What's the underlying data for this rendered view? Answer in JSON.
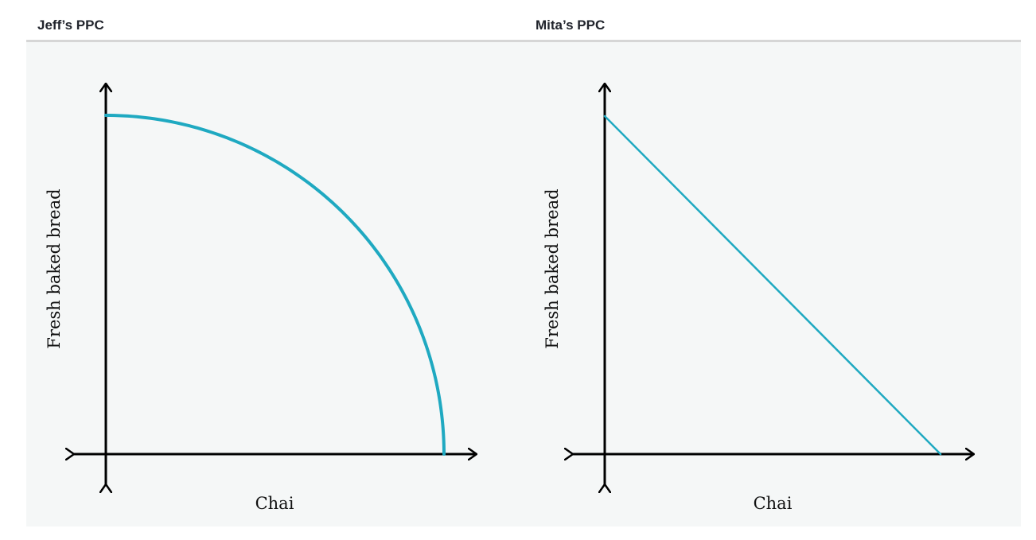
{
  "header": {
    "left_title": "Jeff’s PPC",
    "right_title": "Mita’s PPC"
  },
  "colors": {
    "curve": "#1fa9c1",
    "axis": "#000000",
    "plot_background": "#f5f7f7",
    "divider": "#d6d6d6"
  },
  "chart_data": [
    {
      "type": "line",
      "title": "Jeff’s PPC",
      "xlabel": "Chai",
      "ylabel": "Fresh baked bread",
      "shape": "concave (bowed outward) quarter-ellipse",
      "series": [
        {
          "x": [
            0,
            0.1,
            0.2,
            0.3,
            0.4,
            0.5,
            0.6,
            0.7,
            0.8,
            0.9,
            0.95,
            1.0
          ],
          "y": [
            1.0,
            0.995,
            0.98,
            0.954,
            0.917,
            0.866,
            0.8,
            0.714,
            0.6,
            0.436,
            0.312,
            0
          ]
        }
      ],
      "xlim": [
        0,
        1.1
      ],
      "ylim": [
        0,
        1.1
      ],
      "grid": false
    },
    {
      "type": "line",
      "title": "Mita’s PPC",
      "xlabel": "Chai",
      "ylabel": "Fresh baked bread",
      "shape": "straight line",
      "series": [
        {
          "x": [
            0,
            1.0
          ],
          "y": [
            1.0,
            0
          ]
        }
      ],
      "xlim": [
        0,
        1.1
      ],
      "ylim": [
        0,
        1.1
      ],
      "grid": false
    }
  ]
}
